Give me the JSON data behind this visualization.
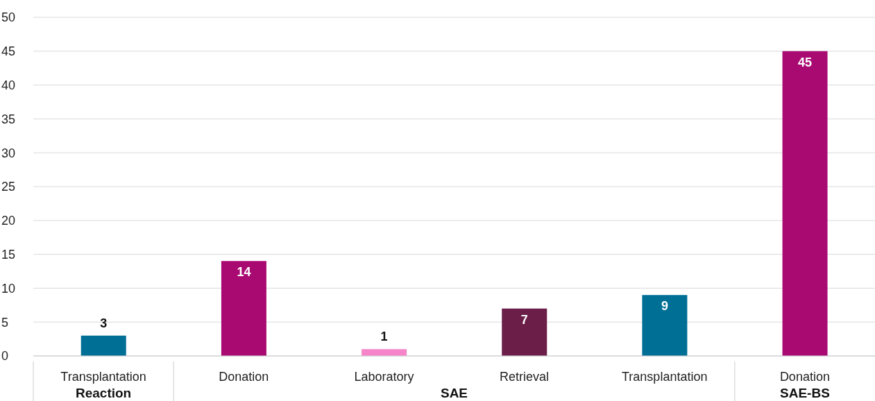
{
  "chart_data": {
    "type": "bar",
    "categories": [
      "Transplantation",
      "Donation",
      "Laboratory",
      "Retrieval",
      "Transplantation",
      "Donation"
    ],
    "values": [
      3,
      14,
      1,
      7,
      9,
      45
    ],
    "colors": [
      "#006f96",
      "#a90a72",
      "#f584c8",
      "#6a1e48",
      "#006f96",
      "#a90a72"
    ],
    "ylim": [
      0,
      50
    ],
    "yticks": [
      0,
      5,
      10,
      15,
      20,
      25,
      30,
      35,
      40,
      45,
      50
    ],
    "grid": "y",
    "data_labels": true,
    "annotations": [
      "Reaction",
      "SAE",
      "SAE-BS"
    ]
  }
}
